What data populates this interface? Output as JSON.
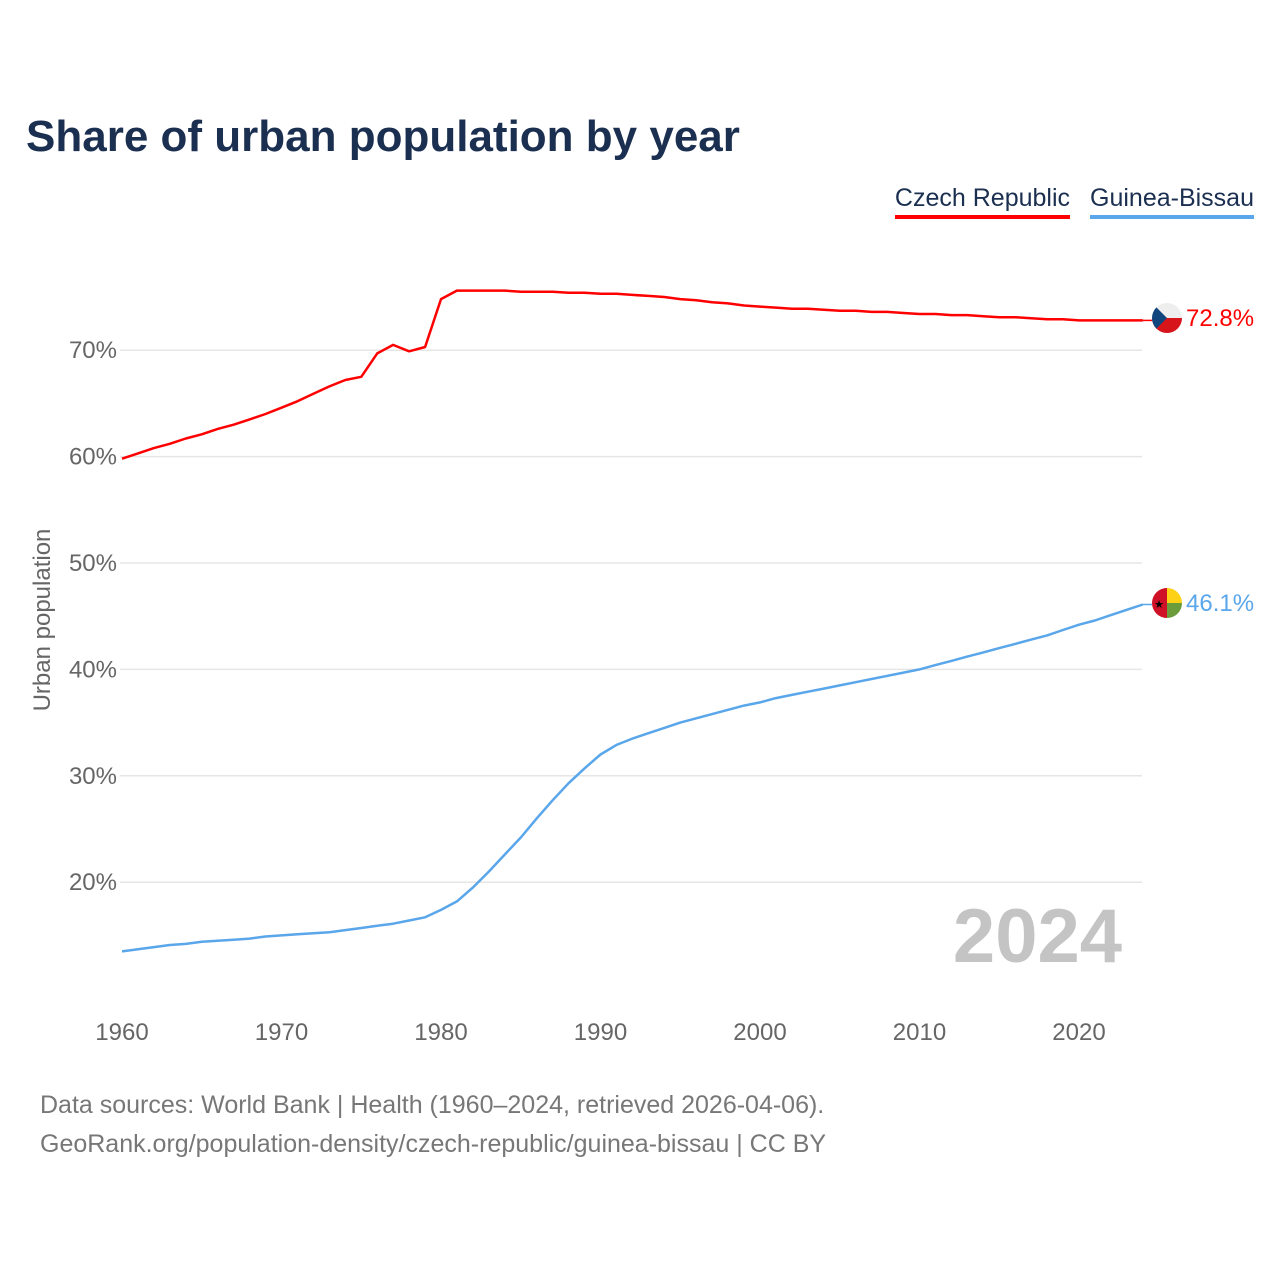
{
  "title": "Share of urban population by year",
  "legend": [
    {
      "label": "Czech Republic",
      "color": "#ff0000"
    },
    {
      "label": "Guinea-Bissau",
      "color": "#5aa6ea"
    }
  ],
  "year_watermark": "2024",
  "footer": {
    "line1": "Data sources: World Bank | Health (1960–2024, retrieved 2026-04-06).",
    "line2": "GeoRank.org/population-density/czech-republic/guinea-bissau | CC BY"
  },
  "chart_data": {
    "type": "line",
    "title": "Share of urban population by year",
    "xlabel": "",
    "ylabel": "Urban population",
    "xlim": [
      1960,
      2024
    ],
    "ylim": [
      10,
      78
    ],
    "x_ticks": [
      "1960",
      "1970",
      "1980",
      "1990",
      "2000",
      "2010",
      "2020"
    ],
    "y_ticks": [
      {
        "value": 20,
        "label": "20%"
      },
      {
        "value": 30,
        "label": "30%"
      },
      {
        "value": 40,
        "label": "40%"
      },
      {
        "value": 50,
        "label": "50%"
      },
      {
        "value": 60,
        "label": "60%"
      },
      {
        "value": 70,
        "label": "70%"
      }
    ],
    "grid": true,
    "legend_position": "top-right",
    "x_start": 1960,
    "series": [
      {
        "name": "Czech Republic",
        "color": "#ff0000",
        "end_label": "72.8%",
        "flag": "czech-republic",
        "values": [
          59.8,
          60.3,
          60.8,
          61.2,
          61.7,
          62.1,
          62.6,
          63.0,
          63.5,
          64.0,
          64.6,
          65.2,
          65.9,
          66.6,
          67.2,
          67.5,
          69.7,
          70.5,
          69.9,
          70.3,
          74.8,
          75.6,
          75.6,
          75.6,
          75.6,
          75.5,
          75.5,
          75.5,
          75.4,
          75.4,
          75.3,
          75.3,
          75.2,
          75.1,
          75.0,
          74.8,
          74.7,
          74.5,
          74.4,
          74.2,
          74.1,
          74.0,
          73.9,
          73.9,
          73.8,
          73.7,
          73.7,
          73.6,
          73.6,
          73.5,
          73.4,
          73.4,
          73.3,
          73.3,
          73.2,
          73.1,
          73.1,
          73.0,
          72.9,
          72.9,
          72.8,
          72.8,
          72.8,
          72.8,
          72.8
        ]
      },
      {
        "name": "Guinea-Bissau",
        "color": "#5aa6ea",
        "end_label": "46.1%",
        "flag": "guinea-bissau",
        "values": [
          13.5,
          13.7,
          13.9,
          14.1,
          14.2,
          14.4,
          14.5,
          14.6,
          14.7,
          14.9,
          15.0,
          15.1,
          15.2,
          15.3,
          15.5,
          15.7,
          15.9,
          16.1,
          16.4,
          16.7,
          17.4,
          18.2,
          19.5,
          21.0,
          22.6,
          24.2,
          26.0,
          27.7,
          29.3,
          30.7,
          32.0,
          32.9,
          33.5,
          34.0,
          34.5,
          35.0,
          35.4,
          35.8,
          36.2,
          36.6,
          36.9,
          37.3,
          37.6,
          37.9,
          38.2,
          38.5,
          38.8,
          39.1,
          39.4,
          39.7,
          40.0,
          40.4,
          40.8,
          41.2,
          41.6,
          42.0,
          42.4,
          42.8,
          43.2,
          43.7,
          44.2,
          44.6,
          45.1,
          45.6,
          46.1
        ]
      }
    ]
  }
}
